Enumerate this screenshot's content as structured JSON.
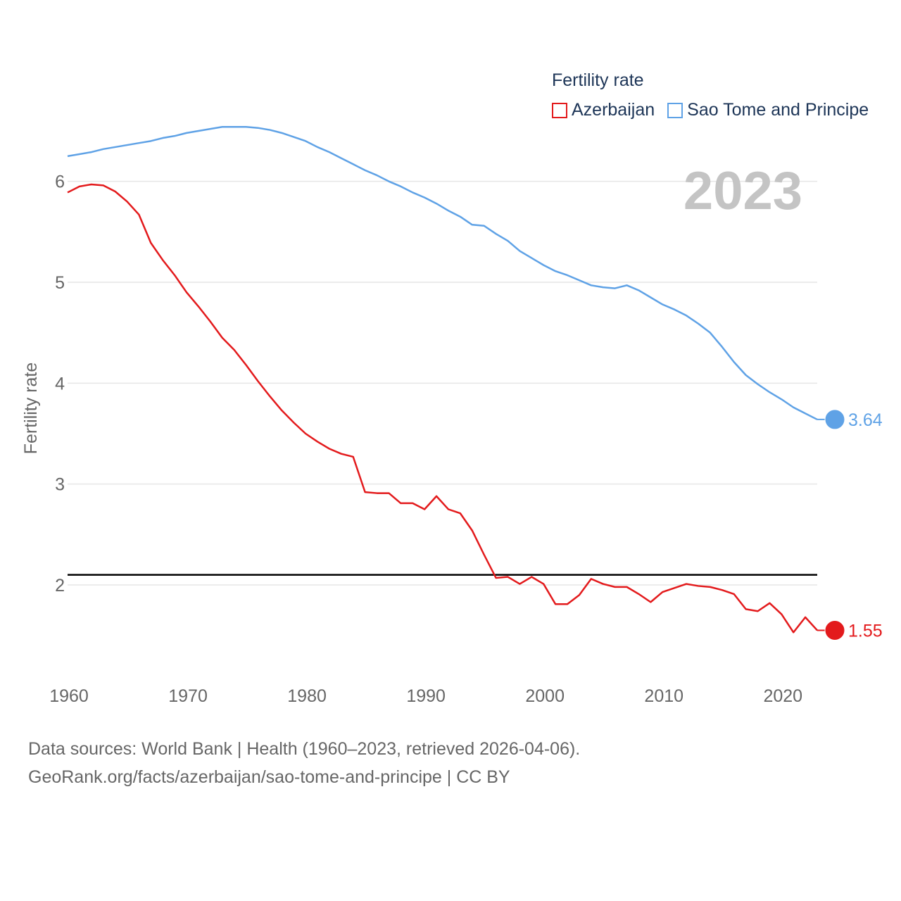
{
  "legend": {
    "title": "Fertility rate",
    "items": [
      {
        "name": "Azerbaijan",
        "color": "#e31a1c"
      },
      {
        "name": "Sao Tome and Principe",
        "color": "#5fa2e6"
      }
    ]
  },
  "year_label": "2023",
  "source": {
    "line1": "Data sources: World Bank | Health (1960–2023, retrieved 2026-04-06).",
    "line2": "GeoRank.org/facts/azerbaijan/sao-tome-and-principe | CC BY"
  },
  "chart_data": {
    "type": "line",
    "title": "Fertility rate",
    "xlabel": "",
    "ylabel": "Fertility rate",
    "xlim": [
      1960,
      2023
    ],
    "ylim": [
      1.1,
      6.5
    ],
    "x_ticks": [
      1960,
      1970,
      1980,
      1990,
      2000,
      2010,
      2020
    ],
    "y_ticks": [
      2,
      3,
      4,
      5,
      6
    ],
    "reference_line": {
      "y": 2.1,
      "color": "#000000"
    },
    "grid": true,
    "x": [
      1960,
      1961,
      1962,
      1963,
      1964,
      1965,
      1966,
      1967,
      1968,
      1969,
      1970,
      1971,
      1972,
      1973,
      1974,
      1975,
      1976,
      1977,
      1978,
      1979,
      1980,
      1981,
      1982,
      1983,
      1984,
      1985,
      1986,
      1987,
      1988,
      1989,
      1990,
      1991,
      1992,
      1993,
      1994,
      1995,
      1996,
      1997,
      1998,
      1999,
      2000,
      2001,
      2002,
      2003,
      2004,
      2005,
      2006,
      2007,
      2008,
      2009,
      2010,
      2011,
      2012,
      2013,
      2014,
      2015,
      2016,
      2017,
      2018,
      2019,
      2020,
      2021,
      2022,
      2023
    ],
    "series": [
      {
        "name": "Azerbaijan",
        "color": "#e31a1c",
        "end_label": "1.55",
        "values": [
          5.89,
          5.95,
          5.97,
          5.96,
          5.9,
          5.8,
          5.67,
          5.39,
          5.22,
          5.07,
          4.9,
          4.76,
          4.61,
          4.45,
          4.33,
          4.18,
          4.02,
          3.87,
          3.73,
          3.61,
          3.5,
          3.42,
          3.35,
          3.3,
          3.27,
          2.92,
          2.91,
          2.91,
          2.81,
          2.81,
          2.75,
          2.88,
          2.75,
          2.71,
          2.54,
          2.3,
          2.07,
          2.08,
          2.01,
          2.08,
          2.01,
          1.81,
          1.81,
          1.9,
          2.06,
          2.01,
          1.98,
          1.98,
          1.91,
          1.83,
          1.93,
          1.97,
          2.01,
          1.99,
          1.98,
          1.95,
          1.91,
          1.76,
          1.74,
          1.82,
          1.71,
          1.53,
          1.68,
          1.55
        ]
      },
      {
        "name": "Sao Tome and Principe",
        "color": "#5fa2e6",
        "end_label": "3.64",
        "values": [
          6.25,
          6.27,
          6.29,
          6.32,
          6.34,
          6.36,
          6.38,
          6.4,
          6.43,
          6.45,
          6.48,
          6.5,
          6.52,
          6.54,
          6.54,
          6.54,
          6.53,
          6.51,
          6.48,
          6.44,
          6.4,
          6.34,
          6.29,
          6.23,
          6.17,
          6.11,
          6.06,
          6.0,
          5.95,
          5.89,
          5.84,
          5.78,
          5.71,
          5.65,
          5.57,
          5.56,
          5.48,
          5.41,
          5.31,
          5.24,
          5.17,
          5.11,
          5.07,
          5.02,
          4.97,
          4.95,
          4.94,
          4.97,
          4.92,
          4.85,
          4.78,
          4.73,
          4.67,
          4.59,
          4.5,
          4.36,
          4.21,
          4.08,
          3.99,
          3.91,
          3.84,
          3.76,
          3.7,
          3.64
        ]
      }
    ]
  }
}
